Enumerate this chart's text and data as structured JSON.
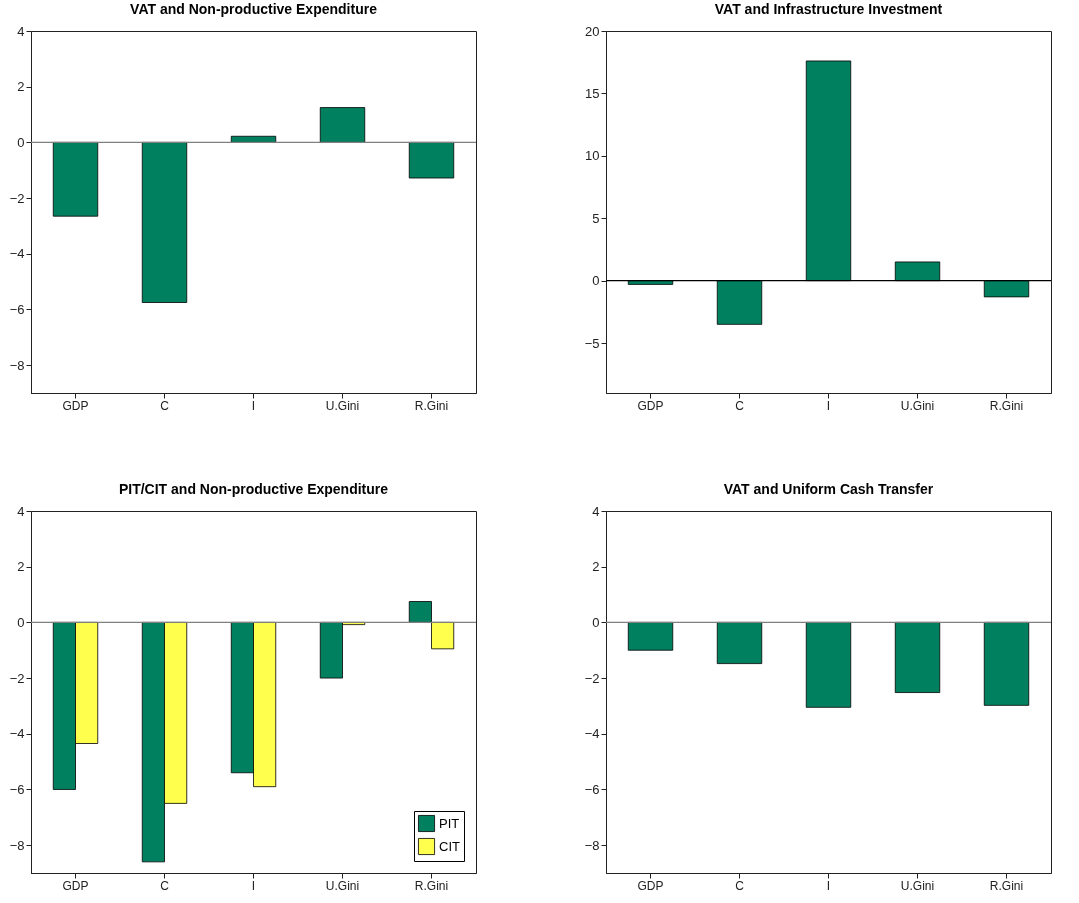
{
  "chart_data": [
    {
      "type": "bar",
      "title": "VAT and Non-productive Expenditure",
      "categories": [
        "GDP",
        "C",
        "I",
        "U.Gini",
        "R.Gini"
      ],
      "series": [
        {
          "color": "#00805f",
          "values": [
            -2.65,
            -5.75,
            0.22,
            1.25,
            -1.28
          ]
        }
      ],
      "ylim": [
        -9,
        4
      ],
      "yticks": [
        -8,
        -6,
        -4,
        -2,
        0,
        2,
        4
      ],
      "grid": false,
      "ref_lines": [
        {
          "axis": "y",
          "value": 0,
          "color": "#808080"
        }
      ]
    },
    {
      "type": "bar",
      "title": "VAT and Infrastructure Investment",
      "categories": [
        "GDP",
        "C",
        "I",
        "U.Gini",
        "R.Gini"
      ],
      "series": [
        {
          "color": "#00805f",
          "values": [
            -0.3,
            -3.5,
            17.6,
            1.5,
            -1.3
          ]
        }
      ],
      "ylim": [
        -9,
        20
      ],
      "yticks": [
        -5,
        0,
        5,
        10,
        15,
        20
      ],
      "grid": false,
      "ref_lines": [
        {
          "axis": "y",
          "value": 0,
          "color": "#000000"
        }
      ]
    },
    {
      "type": "bar",
      "title": "PIT/CIT and Non-productive Expenditure",
      "categories": [
        "GDP",
        "C",
        "I",
        "U.Gini",
        "R.Gini"
      ],
      "series": [
        {
          "name": "PIT",
          "color": "#00805f",
          "values": [
            -6.0,
            -8.6,
            -5.4,
            -2.0,
            0.75
          ]
        },
        {
          "name": "CIT",
          "color": "#ffff4d",
          "values": [
            -4.35,
            -6.5,
            -5.9,
            -0.08,
            -0.95
          ]
        }
      ],
      "ylim": [
        -9,
        4
      ],
      "yticks": [
        -8,
        -6,
        -4,
        -2,
        0,
        2,
        4
      ],
      "grid": false,
      "legend": "bottom right",
      "ref_lines": [
        {
          "axis": "y",
          "value": 0,
          "color": "#808080"
        }
      ]
    },
    {
      "type": "bar",
      "title": "VAT and Uniform Cash Transfer",
      "categories": [
        "GDP",
        "C",
        "I",
        "U.Gini",
        "R.Gini"
      ],
      "series": [
        {
          "color": "#00805f",
          "values": [
            -1.0,
            -1.48,
            -3.05,
            -2.52,
            -2.98
          ]
        }
      ],
      "ylim": [
        -9,
        4
      ],
      "yticks": [
        -8,
        -6,
        -4,
        -2,
        0,
        2,
        4
      ],
      "grid": false,
      "ref_lines": [
        {
          "axis": "y",
          "value": 0,
          "color": "#808080"
        }
      ]
    }
  ]
}
